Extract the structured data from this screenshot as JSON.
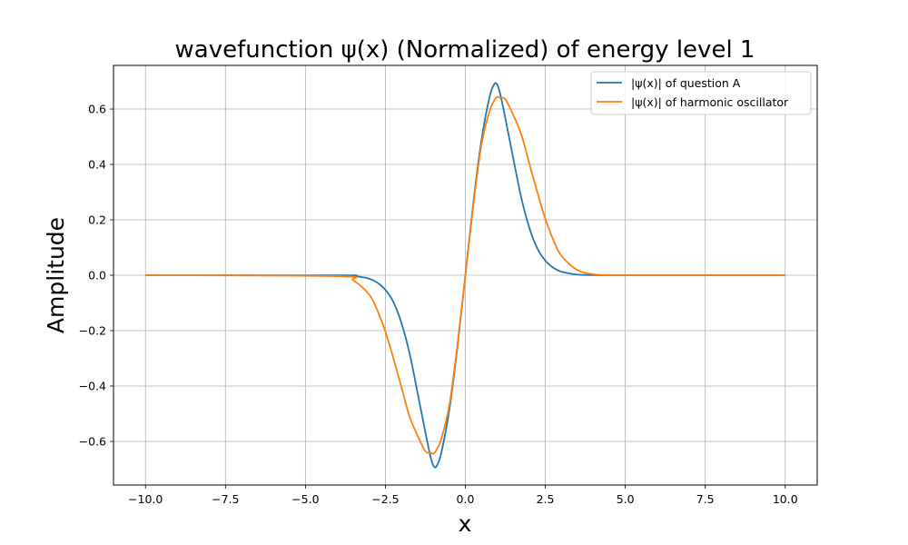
{
  "chart_data": {
    "type": "line",
    "title": "wavefunction ψ(x) (Normalized) of energy level 1",
    "xlabel": "x",
    "ylabel": "Amplitude",
    "xlim": [
      -11.0,
      11.0
    ],
    "ylim": [
      -0.7575,
      0.7575
    ],
    "x_ticks": [
      -10.0,
      -7.5,
      -5.0,
      -2.5,
      0.0,
      2.5,
      5.0,
      7.5,
      10.0
    ],
    "x_tick_labels": [
      "−10.0",
      "−7.5",
      "−5.0",
      "−2.5",
      "0.0",
      "2.5",
      "5.0",
      "7.5",
      "10.0"
    ],
    "y_ticks": [
      -0.6,
      -0.4,
      -0.2,
      0.0,
      0.2,
      0.4,
      0.6
    ],
    "y_tick_labels": [
      "−0.6",
      "−0.4",
      "−0.2",
      "0.0",
      "0.2",
      "0.4",
      "0.6"
    ],
    "grid": true,
    "legend_position": "top-right",
    "x": [
      -10.0,
      -4.0,
      -3.5,
      -3.0,
      -2.75,
      -2.5,
      -2.25,
      -2.0,
      -1.75,
      -1.5,
      -1.25,
      -1.1,
      -1.0,
      -0.9,
      -0.75,
      -0.5,
      -0.25,
      0.0,
      0.25,
      0.5,
      0.75,
      0.9,
      1.0,
      1.1,
      1.25,
      1.5,
      1.75,
      2.0,
      2.25,
      2.5,
      2.75,
      3.0,
      3.5,
      4.0,
      4.5,
      5.0,
      10.0
    ],
    "series": [
      {
        "name": "|ψ(x)| of question A",
        "color": "#1f77b4",
        "values": [
          0.0,
          -0.0004,
          -0.0025,
          -0.0126,
          -0.027,
          -0.0527,
          -0.0966,
          -0.1715,
          -0.279,
          -0.4206,
          -0.5672,
          -0.6494,
          -0.6876,
          -0.6892,
          -0.64,
          -0.485,
          -0.262,
          0.0,
          0.262,
          0.485,
          0.64,
          0.6892,
          0.6876,
          0.6494,
          0.5672,
          0.4206,
          0.279,
          0.1715,
          0.0966,
          0.0527,
          0.027,
          0.0126,
          0.0025,
          0.0004,
          0.0,
          0.0,
          0.0
        ]
      },
      {
        "name": "|ψ(x)| of harmonic oscillator",
        "color": "#ff7f0e",
        "values": [
          0.0,
          -0.0034,
          -0.0188,
          -0.0705,
          -0.1274,
          -0.204,
          -0.2998,
          -0.4031,
          -0.5079,
          -0.5779,
          -0.6351,
          -0.64,
          -0.6442,
          -0.63,
          -0.59,
          -0.469,
          -0.253,
          0.0,
          0.253,
          0.469,
          0.59,
          0.63,
          0.6442,
          0.64,
          0.6351,
          0.5779,
          0.5079,
          0.4031,
          0.2998,
          0.204,
          0.1274,
          0.0705,
          0.0188,
          0.0034,
          0.0005,
          0.0,
          0.0
        ]
      }
    ]
  }
}
